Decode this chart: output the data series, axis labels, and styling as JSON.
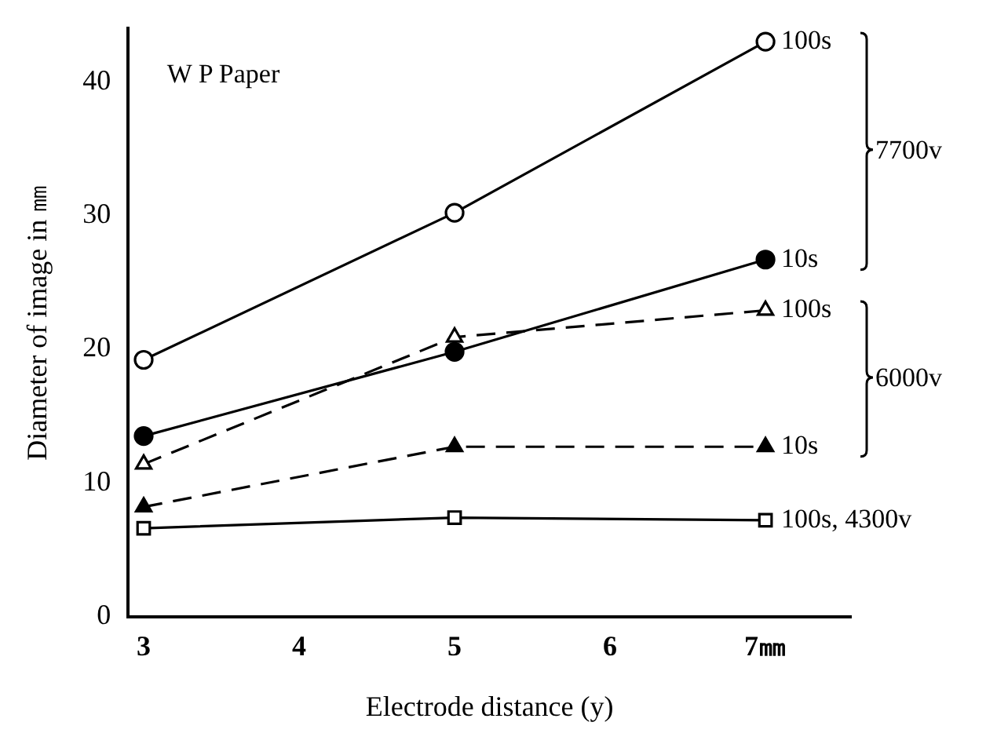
{
  "chart_data": {
    "type": "line",
    "title": "W P Paper",
    "xlabel": "Electrode distance (y)",
    "ylabel": "Diameter of image in ㎜",
    "x": [
      3,
      5,
      7
    ],
    "series": [
      {
        "name": "100s",
        "color": "#000000",
        "colors": [
          "#ffffff",
          "#ffffff",
          "#ffffff"
        ],
        "marker": "circle",
        "line_style": "solid",
        "values": [
          19.2,
          30.2,
          43
        ]
      },
      {
        "name": "10s",
        "color": "#000000",
        "colors": [
          "#000000",
          "#000000",
          "#000000"
        ],
        "marker": "circle",
        "line_style": "solid",
        "values": [
          13.5,
          19.8,
          26.7
        ]
      },
      {
        "name": "100s",
        "color": "#000000",
        "colors": [
          "#ffffff",
          "#ffffff",
          "#ffffff"
        ],
        "marker": "triangle",
        "line_style": "dashed",
        "values": [
          11.4,
          20.9,
          22.9
        ]
      },
      {
        "name": "10s",
        "color": "#000000",
        "colors": [
          "#000000",
          "#000000",
          "#000000"
        ],
        "marker": "triangle",
        "line_style": "dashed",
        "values": [
          8.2,
          12.7,
          12.7
        ]
      },
      {
        "name": "100s, 4300v",
        "color": "#000000",
        "colors": [
          "#ffffff",
          "#ffffff",
          "#ffffff"
        ],
        "marker": "square",
        "line_style": "solid",
        "values": [
          6.6,
          7.4,
          7.2
        ]
      }
    ],
    "annotations": [
      "7700v",
      "6000v"
    ],
    "xlim": [
      2.9,
      7.55
    ],
    "xticks": [
      3,
      4,
      5,
      6,
      {
        "value": 7,
        "label": "7㎜"
      }
    ],
    "ylim": [
      0,
      44
    ],
    "yticks": [
      0,
      10,
      20,
      30,
      40
    ],
    "grid": false,
    "legend": false
  }
}
